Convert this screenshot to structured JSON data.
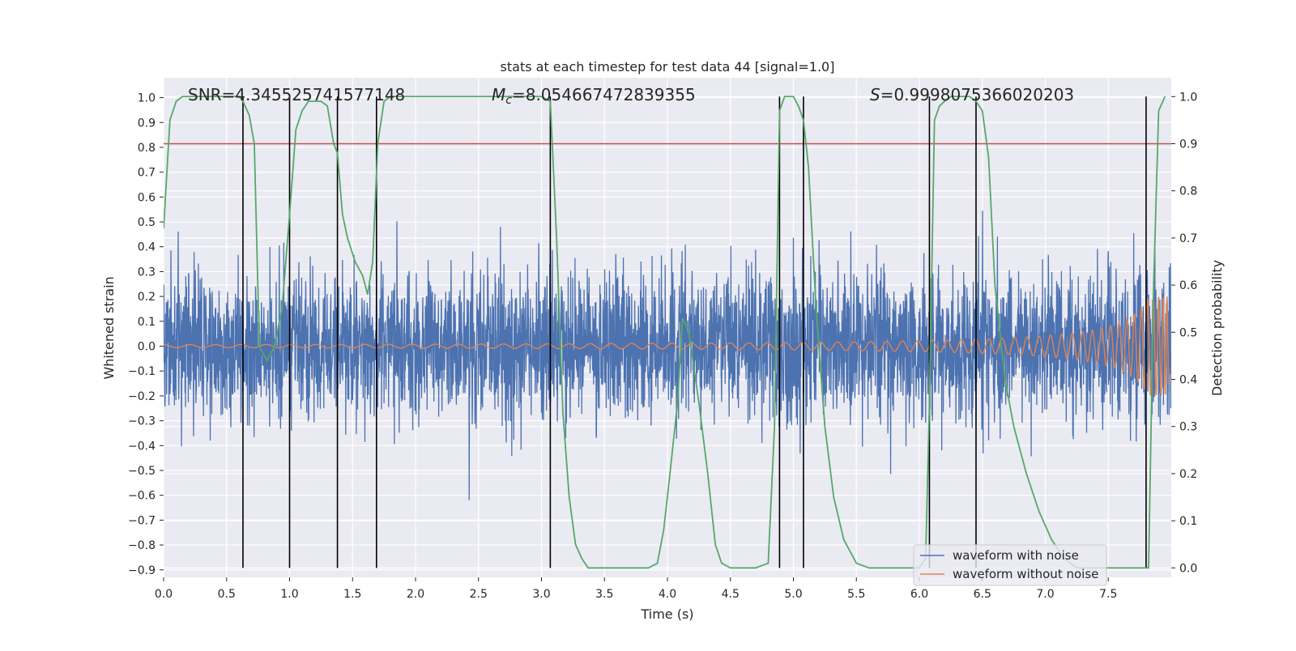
{
  "chart_data": {
    "type": "line",
    "title": "stats at each timestep for test data 44 [signal=1.0]",
    "xlabel": "Time (s)",
    "ylabel_left": "Whitened strain",
    "ylabel_right": "Detection probability",
    "xlim": [
      0.0,
      8.0
    ],
    "ylim_left": [
      -0.93,
      1.08
    ],
    "ylim_right": [
      -0.02,
      1.04
    ],
    "x_ticks": [
      "0.0",
      "0.5",
      "1.0",
      "1.5",
      "2.0",
      "2.5",
      "3.0",
      "3.5",
      "4.0",
      "4.5",
      "5.0",
      "5.5",
      "6.0",
      "6.5",
      "7.0",
      "7.5"
    ],
    "y_ticks_left": [
      "1.0",
      "0.9",
      "0.8",
      "0.7",
      "0.6",
      "0.5",
      "0.4",
      "0.3",
      "0.2",
      "0.1",
      "0.0",
      "−0.1",
      "−0.2",
      "−0.3",
      "−0.4",
      "−0.5",
      "−0.6",
      "−0.7",
      "−0.8",
      "−0.9"
    ],
    "y_ticks_right": [
      "1.0",
      "0.9",
      "0.8",
      "0.7",
      "0.6",
      "0.5",
      "0.4",
      "0.3",
      "0.2",
      "0.1",
      "0.0"
    ],
    "annotations": {
      "snr": "SNR=4.345525741577148",
      "mc_symbol": "M",
      "mc_sub": "c",
      "mc_value": "=8.054667472839355",
      "s_symbol": "S",
      "s_value": "=0.9998075366020203"
    },
    "threshold": 0.9,
    "detection_times": [
      0.63,
      1.0,
      1.38,
      1.69,
      3.07,
      4.89,
      5.08,
      6.08,
      6.45,
      7.8
    ],
    "series": [
      {
        "name": "waveform with noise",
        "color": "#4c72b0",
        "summary": "dense white noise, typically spanning −0.45..0.45 with spikes up to about 0.85 and down to about −0.75"
      },
      {
        "name": "waveform without noise",
        "color": "#dd8452",
        "summary": "chirp signal with amplitude rising from about 0.005 at t=0 to about 0.18 at t≈7.95"
      },
      {
        "name": "detection probability",
        "color": "#55a868",
        "x": [
          0.0,
          0.05,
          0.1,
          0.15,
          0.2,
          0.3,
          0.4,
          0.5,
          0.6,
          0.63,
          0.68,
          0.72,
          0.76,
          0.82,
          0.88,
          0.94,
          1.0,
          1.05,
          1.1,
          1.15,
          1.2,
          1.25,
          1.3,
          1.35,
          1.38,
          1.42,
          1.46,
          1.52,
          1.58,
          1.62,
          1.66,
          1.7,
          1.75,
          1.8,
          1.85,
          1.9,
          2.0,
          2.5,
          3.0,
          3.07,
          3.12,
          3.17,
          3.22,
          3.27,
          3.32,
          3.37,
          3.45,
          3.6,
          3.75,
          3.85,
          3.92,
          3.97,
          4.02,
          4.08,
          4.12,
          4.17,
          4.25,
          4.32,
          4.38,
          4.43,
          4.5,
          4.6,
          4.7,
          4.8,
          4.85,
          4.89,
          4.93,
          4.96,
          5.0,
          5.04,
          5.08,
          5.12,
          5.18,
          5.25,
          5.32,
          5.4,
          5.5,
          5.6,
          5.7,
          5.8,
          5.9,
          6.0,
          6.05,
          6.08,
          6.12,
          6.16,
          6.2,
          6.25,
          6.3,
          6.35,
          6.4,
          6.45,
          6.5,
          6.55,
          6.6,
          6.68,
          6.75,
          6.85,
          6.95,
          7.05,
          7.15,
          7.25,
          7.35,
          7.45,
          7.55,
          7.65,
          7.72,
          7.78,
          7.82,
          7.86,
          7.9,
          7.95
        ],
        "y": [
          0.72,
          0.95,
          0.99,
          1.0,
          1.0,
          1.0,
          1.0,
          1.0,
          1.0,
          0.99,
          0.96,
          0.9,
          0.47,
          0.44,
          0.47,
          0.55,
          0.75,
          0.93,
          0.97,
          0.99,
          0.99,
          0.99,
          0.98,
          0.9,
          0.88,
          0.75,
          0.7,
          0.65,
          0.62,
          0.58,
          0.65,
          0.9,
          0.99,
          1.0,
          1.0,
          1.0,
          1.0,
          1.0,
          1.0,
          0.99,
          0.7,
          0.33,
          0.15,
          0.05,
          0.02,
          0.0,
          0.0,
          0.0,
          0.0,
          0.0,
          0.01,
          0.08,
          0.2,
          0.35,
          0.53,
          0.5,
          0.35,
          0.2,
          0.05,
          0.01,
          0.0,
          0.0,
          0.0,
          0.01,
          0.3,
          0.97,
          1.0,
          1.0,
          1.0,
          0.98,
          0.95,
          0.85,
          0.55,
          0.3,
          0.15,
          0.06,
          0.01,
          0.0,
          0.0,
          0.0,
          0.0,
          0.0,
          0.02,
          0.35,
          0.95,
          0.98,
          0.99,
          1.0,
          1.0,
          1.0,
          1.0,
          0.99,
          0.97,
          0.87,
          0.6,
          0.4,
          0.3,
          0.2,
          0.12,
          0.06,
          0.02,
          0.0,
          0.0,
          0.0,
          0.0,
          0.0,
          0.0,
          0.0,
          0.0,
          0.6,
          0.97,
          1.0
        ]
      }
    ],
    "legend": {
      "placement": "bottom-right",
      "entries": [
        "waveform with noise",
        "waveform without noise"
      ]
    },
    "colors": {
      "background": "#eaeaf2",
      "grid": "#ffffff",
      "threshold": "#c44e52",
      "detection_line": "#000000"
    },
    "grid": true
  }
}
